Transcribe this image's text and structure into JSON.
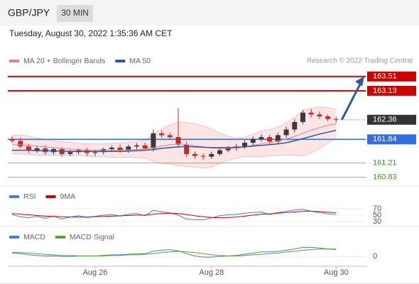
{
  "header": {
    "symbol": "GBP/JPY",
    "interval": "30 MIN",
    "timestamp": "Tuesday, August 30, 2022 1:35:36 AM CET",
    "credit": "Research © 2022 Trading Central"
  },
  "chart_data": [
    {
      "type": "candlestick",
      "categories": [
        null,
        null,
        null,
        null,
        null,
        null,
        null,
        null,
        null,
        null,
        "Aug 26",
        null,
        null,
        null,
        null,
        null,
        null,
        null,
        null,
        null,
        null,
        null,
        null,
        null,
        "Aug 28",
        null,
        null,
        null,
        null,
        null,
        null,
        null,
        null,
        null,
        null,
        null,
        null,
        null,
        null,
        "Aug 30"
      ],
      "open": [
        161.85,
        161.8,
        161.65,
        161.55,
        161.6,
        161.5,
        161.58,
        161.45,
        161.5,
        161.55,
        161.48,
        161.5,
        161.58,
        161.62,
        161.55,
        161.65,
        161.68,
        161.6,
        162.0,
        161.95,
        161.9,
        161.7,
        161.45,
        161.4,
        161.38,
        161.45,
        161.55,
        161.6,
        161.65,
        161.75,
        161.85,
        161.9,
        161.78,
        161.95,
        162.1,
        162.3,
        162.55,
        162.5,
        162.45,
        162.38
      ],
      "high": [
        161.92,
        161.88,
        161.72,
        161.66,
        161.68,
        161.62,
        161.64,
        161.56,
        161.6,
        161.62,
        161.56,
        161.62,
        161.68,
        161.7,
        161.7,
        161.74,
        161.75,
        162.1,
        162.08,
        162.02,
        162.67,
        161.78,
        161.52,
        161.47,
        161.52,
        161.62,
        161.66,
        161.72,
        161.82,
        161.92,
        161.97,
        161.96,
        162.02,
        162.18,
        162.38,
        162.62,
        162.64,
        162.58,
        162.5,
        162.44
      ],
      "low": [
        161.74,
        161.6,
        161.48,
        161.48,
        161.43,
        161.44,
        161.38,
        161.39,
        161.44,
        161.4,
        161.4,
        161.44,
        161.52,
        161.48,
        161.48,
        161.58,
        161.54,
        161.52,
        161.88,
        161.84,
        161.62,
        161.38,
        161.33,
        161.3,
        161.32,
        161.4,
        161.5,
        161.54,
        161.59,
        161.68,
        161.78,
        161.7,
        161.72,
        161.88,
        162.02,
        162.24,
        162.42,
        162.38,
        162.32,
        162.28
      ],
      "close": [
        161.8,
        161.65,
        161.55,
        161.6,
        161.5,
        161.58,
        161.45,
        161.5,
        161.55,
        161.48,
        161.5,
        161.58,
        161.62,
        161.55,
        161.65,
        161.68,
        161.6,
        162.0,
        161.95,
        161.9,
        161.7,
        161.45,
        161.4,
        161.38,
        161.45,
        161.55,
        161.6,
        161.65,
        161.75,
        161.85,
        161.9,
        161.78,
        161.95,
        162.1,
        162.3,
        162.55,
        162.5,
        162.45,
        162.38,
        162.36
      ],
      "up_color": "#3a3a3a",
      "down_color": "#c62828",
      "series": [
        {
          "name": "MA 20 + Bollinger Bands",
          "color": "#f08080",
          "values": [
            161.7,
            161.7,
            161.68,
            161.66,
            161.64,
            161.62,
            161.6,
            161.58,
            161.57,
            161.56,
            161.55,
            161.55,
            161.55,
            161.55,
            161.56,
            161.57,
            161.58,
            161.62,
            161.66,
            161.7,
            161.72,
            161.7,
            161.67,
            161.64,
            161.61,
            161.6,
            161.6,
            161.61,
            161.64,
            161.68,
            161.72,
            161.75,
            161.79,
            161.85,
            161.92,
            162.0,
            162.08,
            162.15,
            162.21,
            162.26
          ],
          "upper": [
            161.95,
            161.95,
            161.92,
            161.88,
            161.84,
            161.8,
            161.78,
            161.76,
            161.74,
            161.72,
            161.72,
            161.72,
            161.74,
            161.74,
            161.76,
            161.78,
            161.82,
            161.98,
            162.12,
            162.22,
            162.3,
            162.28,
            162.25,
            162.2,
            162.12,
            162.0,
            161.92,
            161.88,
            161.9,
            161.98,
            162.06,
            162.1,
            162.16,
            162.28,
            162.42,
            162.6,
            162.68,
            162.7,
            162.68,
            162.64
          ],
          "lower": [
            161.45,
            161.45,
            161.44,
            161.42,
            161.42,
            161.42,
            161.4,
            161.4,
            161.4,
            161.4,
            161.38,
            161.38,
            161.36,
            161.36,
            161.36,
            161.36,
            161.34,
            161.26,
            161.2,
            161.18,
            161.14,
            161.12,
            161.1,
            161.08,
            161.1,
            161.2,
            161.28,
            161.34,
            161.38,
            161.38,
            161.38,
            161.4,
            161.42,
            161.42,
            161.42,
            161.4,
            161.48,
            161.6,
            161.74,
            161.88
          ]
        },
        {
          "name": "MA 50",
          "color": "#2c5aa0",
          "values": [
            161.55,
            161.55,
            161.55,
            161.54,
            161.54,
            161.53,
            161.53,
            161.52,
            161.52,
            161.52,
            161.52,
            161.52,
            161.52,
            161.52,
            161.53,
            161.54,
            161.55,
            161.57,
            161.6,
            161.62,
            161.64,
            161.65,
            161.64,
            161.63,
            161.62,
            161.62,
            161.62,
            161.63,
            161.64,
            161.66,
            161.68,
            161.7,
            161.72,
            161.75,
            161.8,
            161.86,
            161.92,
            161.98,
            162.03,
            162.08
          ]
        }
      ],
      "levels": [
        {
          "value": 163.51,
          "color": "#d00000"
        },
        {
          "value": 163.13,
          "color": "#d00000"
        },
        {
          "value": 162.36,
          "color": "#333333",
          "current": true
        },
        {
          "value": 161.84,
          "color": "#2f6fe0"
        },
        {
          "value": 161.21,
          "color": "#7bbf6a"
        },
        {
          "value": 160.83,
          "color": "#7bbf6a"
        }
      ],
      "ylim": [
        160.6,
        163.75
      ]
    },
    {
      "type": "line",
      "series": [
        {
          "name": "RSI",
          "color": "#4a7ae0",
          "values": [
            52,
            45,
            42,
            46,
            40,
            47,
            38,
            44,
            48,
            43,
            46,
            50,
            52,
            47,
            53,
            55,
            48,
            65,
            60,
            57,
            50,
            38,
            36,
            35,
            42,
            48,
            51,
            52,
            56,
            58,
            60,
            52,
            58,
            62,
            66,
            68,
            62,
            58,
            54,
            52
          ]
        },
        {
          "name": "9MA",
          "color": "#d00000",
          "values": [
            55,
            53,
            51,
            49,
            47,
            46,
            45,
            44,
            44,
            44,
            45,
            46,
            47,
            48,
            49,
            50,
            50,
            53,
            55,
            56,
            55,
            52,
            48,
            45,
            43,
            42,
            43,
            44,
            47,
            50,
            53,
            54,
            56,
            58,
            60,
            62,
            62,
            61,
            59,
            57
          ]
        }
      ],
      "ylim": [
        17,
        83
      ],
      "yticks": [
        70,
        50,
        30
      ]
    },
    {
      "type": "line",
      "series": [
        {
          "name": "MACD",
          "color": "#4a7ae0",
          "values": [
            0.06,
            0.05,
            0.03,
            0.02,
            0.01,
            0.01,
            0.0,
            0.0,
            0.01,
            0.01,
            0.01,
            0.02,
            0.03,
            0.03,
            0.04,
            0.05,
            0.05,
            0.09,
            0.11,
            0.12,
            0.1,
            0.05,
            0.01,
            -0.01,
            -0.01,
            0.0,
            0.01,
            0.02,
            0.04,
            0.06,
            0.08,
            0.08,
            0.09,
            0.11,
            0.13,
            0.16,
            0.16,
            0.15,
            0.13,
            0.12
          ]
        },
        {
          "name": "MACD Signal",
          "color": "#5aa02c",
          "values": [
            0.07,
            0.07,
            0.06,
            0.05,
            0.04,
            0.03,
            0.02,
            0.02,
            0.01,
            0.01,
            0.01,
            0.01,
            0.02,
            0.02,
            0.03,
            0.03,
            0.04,
            0.05,
            0.07,
            0.08,
            0.09,
            0.08,
            0.07,
            0.05,
            0.03,
            0.02,
            0.01,
            0.01,
            0.02,
            0.03,
            0.04,
            0.05,
            0.06,
            0.08,
            0.09,
            0.11,
            0.12,
            0.13,
            0.13,
            0.13
          ]
        }
      ],
      "ylim": [
        -0.17,
        0.45
      ],
      "yticks": [
        0
      ]
    }
  ]
}
